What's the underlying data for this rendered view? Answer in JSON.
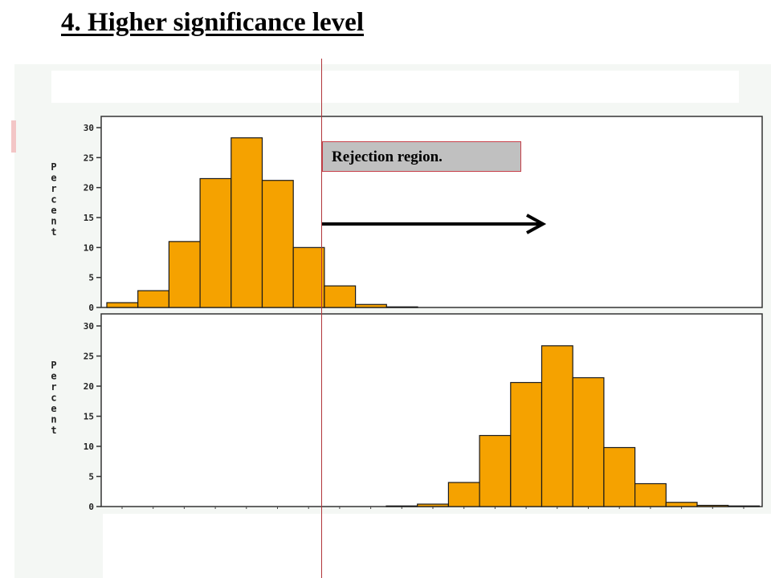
{
  "slide": {
    "title": "4. Higher significance level",
    "annotation": "Rejection region."
  },
  "chart_data": [
    {
      "type": "bar",
      "ylabel": "Percent",
      "ylim": [
        0,
        30
      ],
      "yticks": [
        0,
        5,
        10,
        15,
        20,
        25,
        30
      ],
      "values": [
        0.8,
        2.8,
        11.0,
        21.5,
        28.3,
        21.2,
        10.0,
        3.6,
        0.5,
        0.1
      ],
      "bar_color": "#f5a200",
      "grid": false
    },
    {
      "type": "bar",
      "ylabel": "Percent",
      "ylim": [
        0,
        30
      ],
      "yticks": [
        0,
        5,
        10,
        15,
        20,
        25,
        30
      ],
      "values": [
        0.1,
        0.4,
        4.0,
        11.8,
        20.6,
        26.7,
        21.4,
        9.8,
        3.8,
        0.7,
        0.2,
        0.1
      ],
      "bar_color": "#f5a200",
      "grid": false
    }
  ],
  "colors": {
    "bar": "#f5a200",
    "cutoff_line": "#b0353a",
    "annotation_box": "#c0c0c0",
    "arrow": "#000000"
  }
}
